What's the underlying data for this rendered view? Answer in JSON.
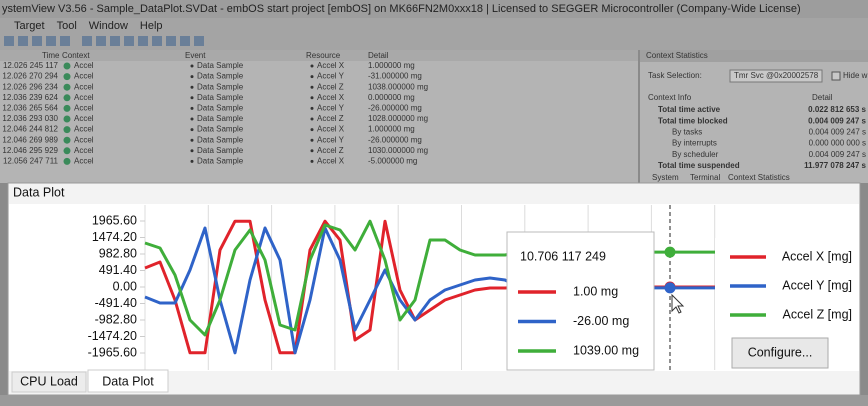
{
  "window": {
    "title": "ystemView V3.56 - Sample_DataPlot.SVDat - embOS start project [embOS] on MK66FN2M0xxx18 | Licensed to SEGGER Microcontroller (Company-Wide License)",
    "menu": [
      "Target",
      "Tool",
      "Window",
      "Help"
    ]
  },
  "events": {
    "columns": [
      "Time",
      "Context",
      "Event",
      "Resource",
      "Detail"
    ],
    "rows": [
      [
        "12.026 245 117",
        "Accel",
        "Data Sample",
        "Accel X",
        "1.000000 mg"
      ],
      [
        "12.026 270 294",
        "Accel",
        "Data Sample",
        "Accel Y",
        "-31.000000 mg"
      ],
      [
        "12.026 296 234",
        "Accel",
        "Data Sample",
        "Accel Z",
        "1038.000000 mg"
      ],
      [
        "12.036 239 624",
        "Accel",
        "Data Sample",
        "Accel X",
        "0.000000 mg"
      ],
      [
        "12.036 265 564",
        "Accel",
        "Data Sample",
        "Accel Y",
        "-26.000000 mg"
      ],
      [
        "12.036 293 030",
        "Accel",
        "Data Sample",
        "Accel Z",
        "1028.000000 mg"
      ],
      [
        "12.046 244 812",
        "Accel",
        "Data Sample",
        "Accel X",
        "1.000000 mg"
      ],
      [
        "12.046 269 989",
        "Accel",
        "Data Sample",
        "Accel Y",
        "-26.000000 mg"
      ],
      [
        "12.046 295 929",
        "Accel",
        "Data Sample",
        "Accel Z",
        "1030.000000 mg"
      ],
      [
        "12.056 247 711",
        "Accel",
        "Data Sample",
        "Accel X",
        "-5.000000 mg"
      ]
    ]
  },
  "context_statistics": {
    "title": "Context Statistics",
    "task_selection_label": "Task Selection:",
    "task": "Tmr Svc @0x20002578",
    "hide_label": "Hide whe",
    "columns": [
      "Context Info",
      "Detail"
    ],
    "rows": [
      [
        "Total time active",
        "0.022 812 653 s"
      ],
      [
        "Total time blocked",
        "0.004 009 247 s"
      ],
      [
        "By tasks",
        "0.004 009 247 s"
      ],
      [
        "By interrupts",
        "0.000 000 000 s"
      ],
      [
        "By scheduler",
        "0.004 009 247 s"
      ],
      [
        "Total time suspended",
        "11.977 078 247 s"
      ]
    ],
    "tabs": [
      "System",
      "Terminal",
      "Context Statistics"
    ]
  },
  "data_plot": {
    "title": "Data Plot",
    "tooltip": {
      "time": "10.706 117 249",
      "values": [
        "1.00 mg",
        "-26.00 mg",
        "1039.00 mg"
      ]
    },
    "button": "Configure...",
    "tabs": [
      "CPU Load",
      "Data Plot"
    ]
  },
  "chart_data": {
    "type": "line",
    "ylim": [
      -2472,
      2442
    ],
    "yticks": [
      {
        "value": 1965.6,
        "label": "1965.60"
      },
      {
        "value": 1474.2,
        "label": "1474.20"
      },
      {
        "value": 982.8,
        "label": "982.80"
      },
      {
        "value": 491.4,
        "label": "491.40"
      },
      {
        "value": 0,
        "label": "0.00"
      },
      {
        "value": -491.4,
        "label": "-491.40"
      },
      {
        "value": -982.8,
        "label": "-982.80"
      },
      {
        "value": -1474.2,
        "label": "-1474.20"
      },
      {
        "value": -1965.6,
        "label": "-1965.60"
      }
    ],
    "series": [
      {
        "name": "Accel X [mg]",
        "color": "#e0232b",
        "values": [
          566,
          745,
          -387,
          -1960,
          -1960,
          1102,
          1960,
          1960,
          -387,
          -1960,
          -1960,
          1102,
          1960,
          1400,
          -1578,
          -1280,
          1960,
          -89,
          -983,
          -685,
          -387,
          -238,
          -89,
          -30,
          -30,
          1,
          1,
          1,
          1,
          1,
          1,
          1,
          1,
          1,
          1,
          1,
          1,
          1,
          1
        ]
      },
      {
        "name": "Accel Y [mg]",
        "color": "#2f63c8",
        "values": [
          -298,
          -476,
          -476,
          506,
          1757,
          -387,
          -1960,
          208,
          1757,
          804,
          -1960,
          -387,
          1757,
          804,
          -1280,
          -387,
          506,
          -387,
          -983,
          -387,
          -89,
          60,
          208,
          268,
          208,
          -26,
          -26,
          -26,
          -26,
          -26,
          -26,
          -26,
          -26,
          -26,
          -26,
          -26,
          -26,
          -26,
          -26
        ]
      },
      {
        "name": "Accel Z [mg]",
        "color": "#3fae3a",
        "values": [
          1310,
          1161,
          357,
          -983,
          -1429,
          -387,
          1102,
          1697,
          804,
          -1132,
          -1280,
          804,
          1846,
          1697,
          1102,
          1960,
          804,
          -983,
          -387,
          1400,
          1400,
          1102,
          953,
          953,
          953,
          1039,
          1039,
          1039,
          1039,
          1039,
          1039,
          1039,
          1039,
          1039,
          1039,
          1039,
          1039,
          1039,
          1039
        ]
      }
    ],
    "cursor_index": 35
  }
}
